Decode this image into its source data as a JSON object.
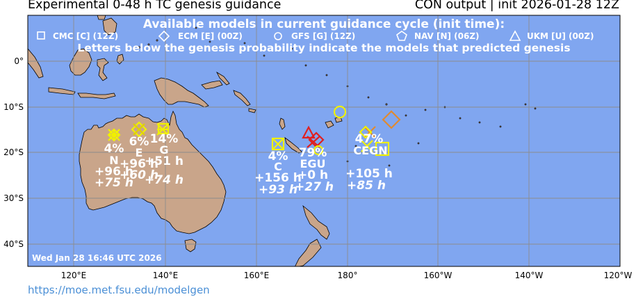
{
  "header": {
    "title": "Experimental 0-48 h TC genesis guidance",
    "run_info": "CON output | init 2026-01-28 12Z"
  },
  "overlay": {
    "heading": "Available models in current guidance cycle (init time):",
    "note": "Letters below the genesis probability indicate the models that predicted genesis",
    "timestamp": "Wed Jan 28 16:46 UTC 2026"
  },
  "legend": [
    {
      "shape": "square",
      "label": "CMC [C] (12Z)"
    },
    {
      "shape": "diamond",
      "label": "ECM [E] (00Z)"
    },
    {
      "shape": "circle",
      "label": "GFS [G] (12Z)"
    },
    {
      "shape": "pentagon",
      "label": "NAV [N] (06Z)"
    },
    {
      "shape": "triangle",
      "label": "UKM [U] (00Z)"
    }
  ],
  "axes": {
    "lon_ticks": [
      "120°E",
      "140°E",
      "160°E",
      "180°",
      "160°W",
      "140°W",
      "120°W"
    ],
    "lat_ticks": [
      "0°",
      "10°S",
      "20°S",
      "30°S",
      "40°S"
    ]
  },
  "colors": {
    "ocean": "#80a6f0",
    "land": "#c9a58a",
    "grid": "#8c8c8c",
    "marker_yellow": "#f0f000",
    "marker_orange": "#e08a30",
    "marker_red": "#e02020"
  },
  "clusters": [
    {
      "prob": "4%",
      "models": "N",
      "lead": "+96 h",
      "lead_italic": "+75 h"
    },
    {
      "prob": "6%",
      "models": "E",
      "lead": "+96 h",
      "lead_italic": "+60 h"
    },
    {
      "prob": "14%",
      "models": "G",
      "lead": "+51 h",
      "lead_italic": "+74 h"
    },
    {
      "prob": "4%",
      "models": "C",
      "lead": "+156 h",
      "lead_italic": "+93 h"
    },
    {
      "prob": "79%",
      "models": "EGU",
      "lead": "+0 h",
      "lead_italic": "+27 h"
    },
    {
      "prob": "47%",
      "models": "CEGN",
      "lead": "+105 h",
      "lead_italic": "+85 h"
    }
  ],
  "credit": "https://moe.met.fsu.edu/modelgen"
}
